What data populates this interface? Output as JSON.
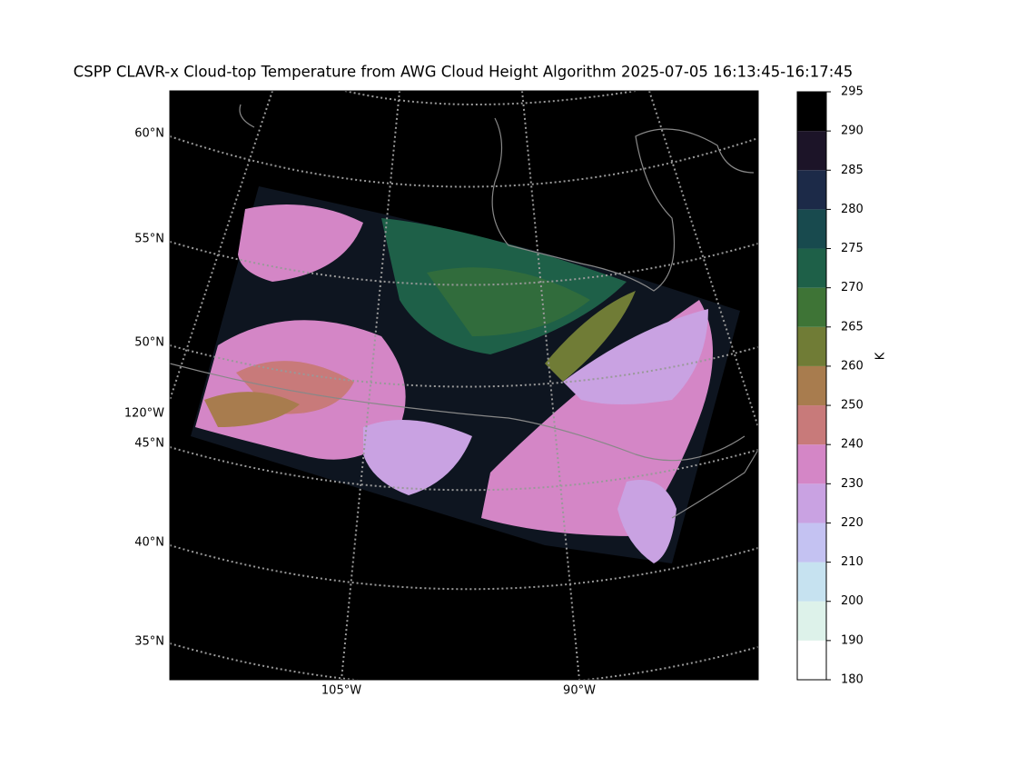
{
  "title": "CSPP CLAVR-x Cloud-top Temperature from AWG Cloud Height Algorithm 2025-07-05 16:13:45-16:17:45",
  "map": {
    "lat_labels": [
      "60°N",
      "55°N",
      "50°N",
      "45°N",
      "40°N",
      "35°N"
    ],
    "lon_labels": [
      "120°W",
      "105°W",
      "90°W"
    ]
  },
  "colorbar": {
    "label": "K",
    "ticks": [
      180,
      190,
      200,
      210,
      220,
      230,
      240,
      250,
      260,
      265,
      270,
      275,
      280,
      285,
      290,
      295
    ],
    "colors": [
      "#ffffff",
      "#ddf2ea",
      "#c6e2f0",
      "#c4c2f2",
      "#c9a2e2",
      "#d486c6",
      "#c87a7a",
      "#a87c4e",
      "#707c36",
      "#3e7436",
      "#1e6048",
      "#184a4e",
      "#1c2a48",
      "#1c1428",
      "#000000"
    ]
  }
}
